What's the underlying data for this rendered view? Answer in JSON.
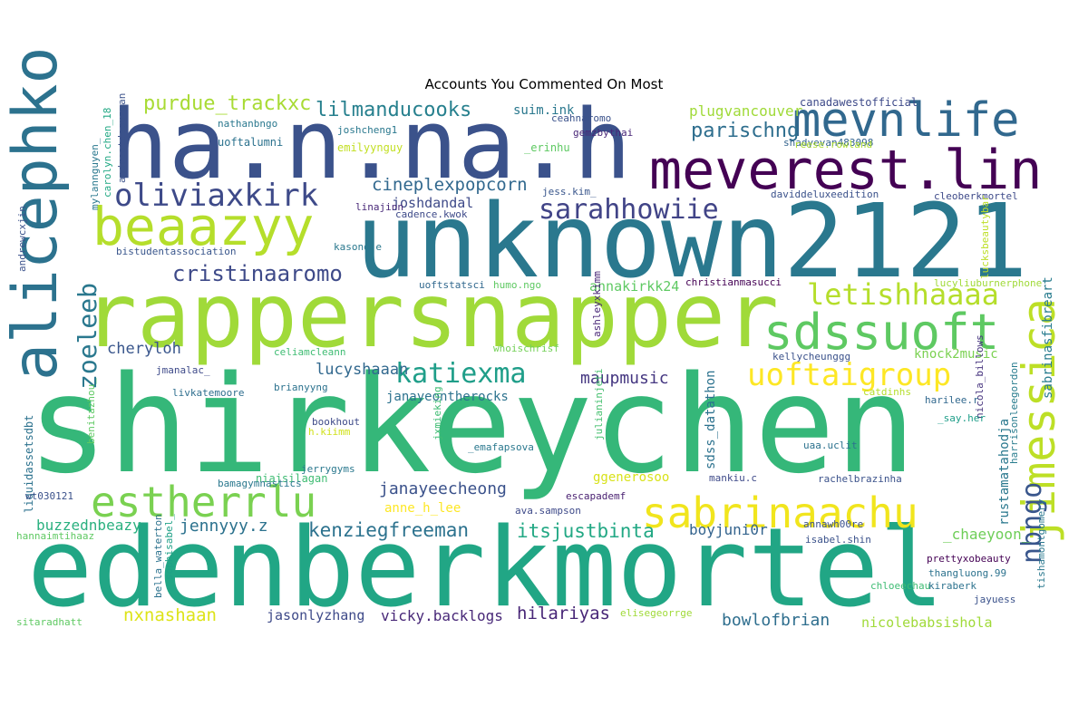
{
  "chart_data": {
    "type": "wordcloud",
    "title": "Accounts You Commented On Most",
    "words": [
      {
        "text": "shirkeychen",
        "color": "#35b779"
      },
      {
        "text": "edenberkmortel",
        "color": "#21a685"
      },
      {
        "text": "ha.n.na.h",
        "color": "#3b528b"
      },
      {
        "text": "unknown2121",
        "color": "#2a788e"
      },
      {
        "text": "rappersnapper",
        "color": "#a0da39"
      },
      {
        "text": "meverest.lin",
        "color": "#440154"
      },
      {
        "text": "mevnlife",
        "color": "#31688e"
      },
      {
        "text": "alicephko",
        "color": "#2c728e"
      },
      {
        "text": "beaazyy",
        "color": "#b5de2b"
      },
      {
        "text": "sabrinaachu",
        "color": "#f1e51d"
      },
      {
        "text": "estherrlu",
        "color": "#7ad151"
      },
      {
        "text": "sdssuoft",
        "color": "#5ec962"
      },
      {
        "text": "jimessica",
        "color": "#bddf26"
      },
      {
        "text": "oliviaxkirk",
        "color": "#3e4a89"
      },
      {
        "text": "sarahhowiie",
        "color": "#414487"
      },
      {
        "text": "letishhaaaa",
        "color": "#b5de2b"
      },
      {
        "text": "uoftaigroup",
        "color": "#fde725"
      },
      {
        "text": "katiexma",
        "color": "#1f9e89"
      },
      {
        "text": "cristinaaromo",
        "color": "#3e4a89"
      },
      {
        "text": "zoeleeb",
        "color": "#2a788e"
      },
      {
        "text": "nbngo",
        "color": "#39568c"
      },
      {
        "text": "lilmanducooks",
        "color": "#27808e"
      },
      {
        "text": "purdue_trackxc",
        "color": "#a8db34"
      },
      {
        "text": "parischng",
        "color": "#2e6e8e"
      },
      {
        "text": "cineplexpopcorn",
        "color": "#31688e"
      },
      {
        "text": "kenziegfreeman",
        "color": "#2c728e"
      },
      {
        "text": "itsjustbinta",
        "color": "#22a884"
      },
      {
        "text": "janayeecheong",
        "color": "#3b528b"
      },
      {
        "text": "jennyyy.z",
        "color": "#2c728e"
      },
      {
        "text": "hilariyas",
        "color": "#482677"
      },
      {
        "text": "bowlofbrian",
        "color": "#2e6e8e"
      },
      {
        "text": "nxnashaan",
        "color": "#dde318"
      },
      {
        "text": "lucyshaaan",
        "color": "#31688e"
      },
      {
        "text": "maupmusic",
        "color": "#453781"
      },
      {
        "text": "cheryloh",
        "color": "#39568c"
      },
      {
        "text": "buzzednbeazy",
        "color": "#2ab07f"
      },
      {
        "text": "jasonlyzhang",
        "color": "#3e4a89"
      },
      {
        "text": "vicky.backlogs",
        "color": "#482878"
      },
      {
        "text": "boyjuni0r",
        "color": "#33638d"
      },
      {
        "text": "_chaeyoon_",
        "color": "#6ece58"
      },
      {
        "text": "nicolebabsishola",
        "color": "#a0da39"
      },
      {
        "text": "annakirkk24",
        "color": "#5ec962"
      },
      {
        "text": "joshdandal",
        "color": "#3e4a89"
      },
      {
        "text": "plugvancouver",
        "color": "#a0da39"
      },
      {
        "text": "rustamatahodja",
        "color": "#2a788e"
      },
      {
        "text": "sabrinasfibreart",
        "color": "#287c8e"
      },
      {
        "text": "sdss_datathon",
        "color": "#2c728e"
      },
      {
        "text": "janayeontherocks",
        "color": "#2c728e"
      },
      {
        "text": "anne_h_lee",
        "color": "#fde725"
      },
      {
        "text": "ggenerosoo",
        "color": "#d8e219"
      },
      {
        "text": "knock2music",
        "color": "#7ad151"
      },
      {
        "text": "suim.ink",
        "color": "#2a788e"
      },
      {
        "text": "canadawestofficial",
        "color": "#3e4a89"
      },
      {
        "text": "nathanbngo",
        "color": "#2a788e"
      },
      {
        "text": "joshcheng1",
        "color": "#2a788e"
      },
      {
        "text": "ceahnaromo",
        "color": "#3b528b"
      },
      {
        "text": "gemzbythai",
        "color": "#482677"
      },
      {
        "text": "uoftalumni",
        "color": "#2c728e"
      },
      {
        "text": "emilyynguy",
        "color": "#c2df23"
      },
      {
        "text": "_erinhu",
        "color": "#5ec962"
      },
      {
        "text": "shadyevan483098",
        "color": "#33638d"
      },
      {
        "text": "reese.rowland",
        "color": "#addc30"
      },
      {
        "text": "mylannguyen_",
        "color": "#2a788e"
      },
      {
        "text": "carolyn.chen_18",
        "color": "#22a884"
      },
      {
        "text": "andreatdeguzman",
        "color": "#3b528b"
      },
      {
        "text": "jess.kim_",
        "color": "#39568c"
      },
      {
        "text": "daviddeluxeedition",
        "color": "#3b528b"
      },
      {
        "text": "cleoberkmortel",
        "color": "#3e4a89"
      },
      {
        "text": "andrewcxjin",
        "color": "#3b528b"
      },
      {
        "text": "linajinn",
        "color": "#482878"
      },
      {
        "text": "cadence.kwok",
        "color": "#3e4a89"
      },
      {
        "text": "lucksbeautybar",
        "color": "#bddf26"
      },
      {
        "text": "bistudentassociation",
        "color": "#39568c"
      },
      {
        "text": "kasond.e",
        "color": "#2a788e"
      },
      {
        "text": "uoftstatsci",
        "color": "#31688e"
      },
      {
        "text": "humo.ngo",
        "color": "#5ec962"
      },
      {
        "text": "ashleyxkimm",
        "color": "#482677"
      },
      {
        "text": "christianmasucci",
        "color": "#440154"
      },
      {
        "text": "lucyliuburnerphone",
        "color": "#a0da39"
      },
      {
        "text": "kellycheunggg",
        "color": "#3b528b"
      },
      {
        "text": "celiamcleann",
        "color": "#3fbc73"
      },
      {
        "text": "whoischrisf",
        "color": "#73d056"
      },
      {
        "text": "jmanalac_",
        "color": "#3e4a89"
      },
      {
        "text": "livkatemoore",
        "color": "#2e6e8e"
      },
      {
        "text": "brianyyng",
        "color": "#2c728e"
      },
      {
        "text": "nicola_billows",
        "color": "#46337e"
      },
      {
        "text": "harrisonleegordon",
        "color": "#287c8e"
      },
      {
        "text": "catdinhs",
        "color": "#b5de2b"
      },
      {
        "text": "liquidassetsdbt",
        "color": "#2c728e"
      },
      {
        "text": "benitazhou_",
        "color": "#5ec962"
      },
      {
        "text": "bookhout",
        "color": "#3e4a89"
      },
      {
        "text": "h.kiimm",
        "color": "#d0e11c"
      },
      {
        "text": "jxmieking",
        "color": "#3fbc73"
      },
      {
        "text": "julianinjeti",
        "color": "#46c06f"
      },
      {
        "text": "harilee.r",
        "color": "#31688e"
      },
      {
        "text": "_say.her",
        "color": "#1f9e89"
      },
      {
        "text": "_emafapsova",
        "color": "#2a788e"
      },
      {
        "text": "uaa.uclit",
        "color": "#2c728e"
      },
      {
        "text": "jerrygyms",
        "color": "#2a788e"
      },
      {
        "text": "niajsilagan",
        "color": "#3fbc73"
      },
      {
        "text": "bamagymnastics",
        "color": "#2a788e"
      },
      {
        "text": "mankiu.c",
        "color": "#3e4a89"
      },
      {
        "text": "rachelbrazinha",
        "color": "#3b528b"
      },
      {
        "text": "wt030121",
        "color": "#3b528b"
      },
      {
        "text": "escapademf",
        "color": "#481f70"
      },
      {
        "text": "tishamontgomery",
        "color": "#2a788e"
      },
      {
        "text": "ava.sampson",
        "color": "#3e4a89"
      },
      {
        "text": "annawh00re",
        "color": "#3b528b"
      },
      {
        "text": "hannaimtihaaz",
        "color": "#5ec962"
      },
      {
        "text": "isabel.shin",
        "color": "#3b528b"
      },
      {
        "text": "prettyxobeauty",
        "color": "#440154"
      },
      {
        "text": "sophisabel_",
        "color": "#1fa187"
      },
      {
        "text": "thangluong.99",
        "color": "#2c728e"
      },
      {
        "text": "bella_waterton",
        "color": "#2c728e"
      },
      {
        "text": "chloeechau",
        "color": "#3fbc73"
      },
      {
        "text": "kiraberk",
        "color": "#2c728e"
      },
      {
        "text": "jayuess",
        "color": "#3b528b"
      },
      {
        "text": "sitaradhatt",
        "color": "#5ec962"
      },
      {
        "text": "elisegeorrge",
        "color": "#a0da39"
      }
    ]
  }
}
